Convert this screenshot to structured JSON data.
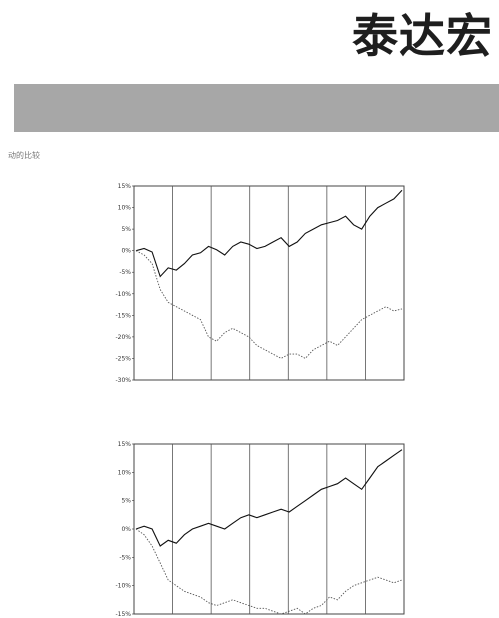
{
  "header": {
    "title": "泰达宏"
  },
  "section": {
    "side_note": "动的比较"
  },
  "charts": [
    {
      "heading": "",
      "y_ticks": [
        "15%",
        "10%",
        "5%",
        "0%",
        "-5%",
        "-10%",
        "-15%",
        "-20%",
        "-25%",
        "-30%"
      ],
      "ylim": [
        -30,
        15
      ]
    },
    {
      "heading": "",
      "y_ticks": [
        "15%",
        "10%",
        "5%",
        "0%",
        "-5%",
        "-10%",
        "-15%"
      ],
      "ylim": [
        -15,
        15
      ]
    }
  ],
  "chart_data": [
    {
      "type": "line",
      "title": "",
      "ylim": [
        -30,
        15
      ],
      "series": [
        {
          "values": [
            0,
            0.5,
            -0.3,
            -6,
            -4,
            -4.5,
            -3,
            -1,
            -0.5,
            1,
            0.2,
            -1,
            1,
            2,
            1.5,
            0.5,
            1,
            2,
            3,
            1,
            2,
            4,
            5,
            6,
            6.5,
            7,
            8,
            6,
            5,
            8,
            10,
            11,
            12,
            14
          ]
        },
        {
          "values": [
            0,
            -1,
            -3,
            -9,
            -12,
            -13,
            -14,
            -15,
            -16,
            -20,
            -21,
            -19,
            -18,
            -19,
            -20,
            -22,
            -23,
            -24,
            -25,
            -24,
            -24,
            -25,
            -23,
            -22,
            -21,
            -22,
            -20,
            -18,
            -16,
            -15,
            -14,
            -13,
            -14,
            -13.5
          ]
        }
      ]
    },
    {
      "type": "line",
      "title": "",
      "ylim": [
        -15,
        15
      ],
      "series": [
        {
          "values": [
            0,
            0.5,
            0,
            -3,
            -2,
            -2.5,
            -1,
            0,
            0.5,
            1,
            0.5,
            0,
            1,
            2,
            2.5,
            2,
            2.5,
            3,
            3.5,
            3,
            4,
            5,
            6,
            7,
            7.5,
            8,
            9,
            8,
            7,
            9,
            11,
            12,
            13,
            14
          ]
        },
        {
          "values": [
            0,
            -1,
            -3,
            -6,
            -9,
            -10,
            -11,
            -11.5,
            -12,
            -13,
            -13.5,
            -13,
            -12.5,
            -13,
            -13.5,
            -14,
            -14,
            -14.5,
            -15,
            -14.5,
            -14,
            -15,
            -14,
            -13.5,
            -12,
            -12.5,
            -11,
            -10,
            -9.5,
            -9,
            -8.5,
            -9,
            -9.5,
            -9
          ]
        }
      ]
    }
  ]
}
